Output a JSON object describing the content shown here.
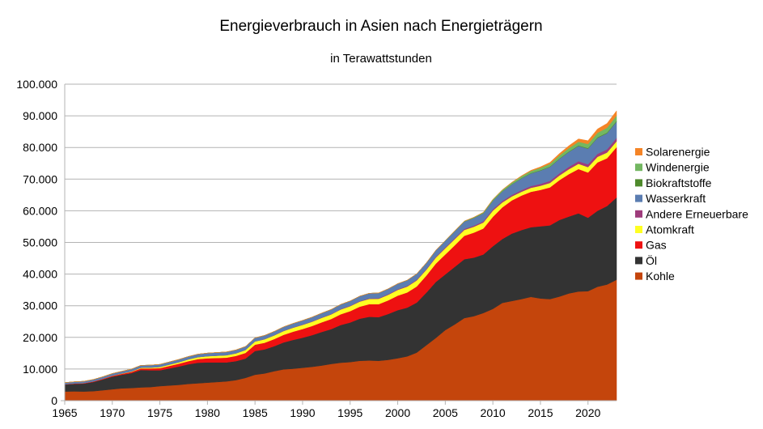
{
  "chart_data": {
    "type": "area",
    "stacked": true,
    "title": "Energieverbrauch in Asien nach Energieträgern",
    "subtitle": "in Terawattstunden",
    "xlabel": "",
    "ylabel": "",
    "xlim": [
      1965,
      2023
    ],
    "ylim": [
      0,
      100000
    ],
    "x_ticks": [
      "1965",
      "1970",
      "1975",
      "1980",
      "1985",
      "1990",
      "1995",
      "2000",
      "2005",
      "2010",
      "2015",
      "2020"
    ],
    "y_ticks": [
      "0",
      "10.000",
      "20.000",
      "30.000",
      "40.000",
      "50.000",
      "60.000",
      "70.000",
      "80.000",
      "90.000",
      "100.000"
    ],
    "grid": "horizontal",
    "legend_position": "right",
    "x": [
      1965,
      1966,
      1967,
      1968,
      1969,
      1970,
      1971,
      1972,
      1973,
      1974,
      1975,
      1976,
      1977,
      1978,
      1979,
      1980,
      1981,
      1982,
      1983,
      1984,
      1985,
      1986,
      1987,
      1988,
      1989,
      1990,
      1991,
      1992,
      1993,
      1994,
      1995,
      1996,
      1997,
      1998,
      1999,
      2000,
      2001,
      2002,
      2003,
      2004,
      2005,
      2006,
      2007,
      2008,
      2009,
      2010,
      2011,
      2012,
      2013,
      2014,
      2015,
      2016,
      2017,
      2018,
      2019,
      2020,
      2021,
      2022,
      2023
    ],
    "series": [
      {
        "name": "Kohle",
        "color": "#c4450c",
        "values": [
          2900,
          2950,
          2900,
          3000,
          3300,
          3600,
          3900,
          4000,
          4200,
          4300,
          4600,
          4800,
          5000,
          5300,
          5500,
          5700,
          5900,
          6100,
          6500,
          7200,
          8200,
          8600,
          9300,
          9900,
          10100,
          10400,
          10700,
          11100,
          11600,
          12000,
          12200,
          12600,
          12700,
          12600,
          12900,
          13400,
          14000,
          15200,
          17500,
          19800,
          22300,
          24100,
          26100,
          26700,
          27700,
          29000,
          30900,
          31500,
          32100,
          32800,
          32300,
          32100,
          32900,
          33900,
          34500,
          34600,
          36000,
          36700,
          38200
        ]
      },
      {
        "name": "Öl",
        "color": "#333333",
        "values": [
          2200,
          2350,
          2500,
          2900,
          3400,
          4000,
          4300,
          4700,
          5500,
          5300,
          5000,
          5400,
          5800,
          6200,
          6500,
          6400,
          6200,
          6000,
          6000,
          6100,
          7500,
          7600,
          7900,
          8500,
          9100,
          9500,
          10000,
          10600,
          11000,
          11900,
          12500,
          13300,
          13800,
          13800,
          14500,
          15200,
          15400,
          15800,
          16600,
          17700,
          17600,
          18200,
          18600,
          18500,
          18500,
          19800,
          20200,
          21300,
          21800,
          22000,
          22800,
          23300,
          24200,
          24300,
          24700,
          23200,
          24000,
          24800,
          26000
        ]
      },
      {
        "name": "Gas",
        "color": "#ee1111",
        "values": [
          100,
          130,
          150,
          180,
          200,
          250,
          300,
          400,
          500,
          600,
          700,
          800,
          900,
          1000,
          1150,
          1300,
          1400,
          1500,
          1650,
          1800,
          2000,
          2100,
          2250,
          2400,
          2600,
          2750,
          2900,
          3050,
          3200,
          3400,
          3600,
          3800,
          4000,
          4100,
          4300,
          4600,
          4800,
          5100,
          5400,
          5800,
          6300,
          6800,
          7400,
          7900,
          8200,
          9300,
          10000,
          10500,
          10900,
          11200,
          11500,
          12000,
          12600,
          13400,
          14000,
          14300,
          15300,
          15100,
          15900
        ]
      },
      {
        "name": "Atomkraft",
        "color": "#ffff22",
        "values": [
          0,
          0,
          0,
          10,
          30,
          60,
          100,
          150,
          200,
          250,
          350,
          400,
          450,
          550,
          600,
          650,
          700,
          750,
          800,
          900,
          1000,
          1100,
          1150,
          1200,
          1250,
          1300,
          1350,
          1400,
          1450,
          1500,
          1550,
          1600,
          1650,
          1700,
          1750,
          1800,
          1850,
          1900,
          1850,
          1900,
          1950,
          1950,
          1850,
          1850,
          1900,
          1950,
          1550,
          1250,
          1200,
          1250,
          1300,
          1400,
          1450,
          1550,
          1650,
          1700,
          1750,
          1800,
          1850
        ]
      },
      {
        "name": "Andere Erneuerbare",
        "color": "#9e3c7c",
        "values": [
          10,
          10,
          10,
          10,
          10,
          10,
          10,
          10,
          15,
          15,
          20,
          20,
          25,
          25,
          30,
          35,
          40,
          45,
          50,
          55,
          60,
          70,
          80,
          90,
          100,
          110,
          120,
          130,
          140,
          150,
          160,
          170,
          180,
          190,
          200,
          210,
          220,
          230,
          240,
          260,
          280,
          300,
          330,
          360,
          390,
          420,
          450,
          480,
          520,
          560,
          600,
          650,
          700,
          760,
          820,
          880,
          940,
          1000,
          1060
        ]
      },
      {
        "name": "Wasserkraft",
        "color": "#5b7db1",
        "values": [
          500,
          530,
          560,
          590,
          620,
          650,
          680,
          710,
          740,
          770,
          800,
          830,
          860,
          890,
          920,
          950,
          980,
          1010,
          1040,
          1070,
          1100,
          1140,
          1180,
          1220,
          1260,
          1300,
          1340,
          1380,
          1420,
          1460,
          1500,
          1550,
          1600,
          1650,
          1700,
          1750,
          1800,
          1850,
          1900,
          2000,
          2100,
          2200,
          2300,
          2400,
          2500,
          2700,
          3000,
          3300,
          3700,
          4000,
          4200,
          4400,
          4550,
          4700,
          4800,
          4950,
          5050,
          5100,
          5150
        ]
      },
      {
        "name": "Biokraftstoffe",
        "color": "#4f8a2c",
        "values": [
          0,
          0,
          0,
          0,
          0,
          0,
          0,
          0,
          0,
          0,
          0,
          0,
          0,
          0,
          0,
          0,
          0,
          0,
          0,
          0,
          0,
          0,
          0,
          0,
          0,
          0,
          0,
          0,
          0,
          0,
          0,
          0,
          0,
          0,
          0,
          0,
          0,
          0,
          0,
          5,
          10,
          20,
          30,
          50,
          60,
          70,
          80,
          90,
          100,
          110,
          120,
          130,
          140,
          150,
          170,
          180,
          190,
          200,
          220
        ]
      },
      {
        "name": "Windenergie",
        "color": "#73b761",
        "values": [
          0,
          0,
          0,
          0,
          0,
          0,
          0,
          0,
          0,
          0,
          0,
          0,
          0,
          0,
          0,
          0,
          0,
          0,
          0,
          0,
          0,
          0,
          0,
          0,
          0,
          0,
          0,
          0,
          0,
          0,
          0,
          0,
          0,
          0,
          0,
          0,
          10,
          20,
          30,
          40,
          60,
          90,
          130,
          180,
          250,
          340,
          420,
          500,
          580,
          660,
          750,
          850,
          950,
          1060,
          1170,
          1290,
          1420,
          1540,
          1700
        ]
      },
      {
        "name": "Solarenergie",
        "color": "#f58426",
        "values": [
          0,
          0,
          0,
          0,
          0,
          0,
          0,
          0,
          0,
          0,
          0,
          0,
          0,
          0,
          0,
          0,
          0,
          0,
          0,
          0,
          0,
          0,
          0,
          0,
          0,
          0,
          0,
          0,
          0,
          0,
          0,
          0,
          0,
          0,
          0,
          0,
          0,
          0,
          0,
          0,
          0,
          0,
          5,
          10,
          20,
          40,
          60,
          100,
          150,
          200,
          300,
          450,
          600,
          750,
          900,
          1050,
          1200,
          1350,
          1500
        ]
      }
    ]
  }
}
